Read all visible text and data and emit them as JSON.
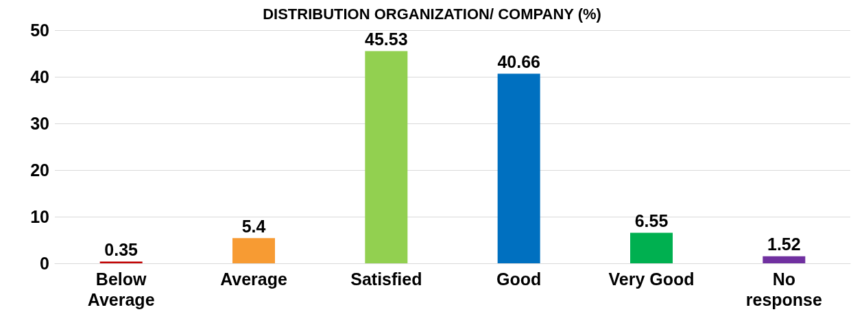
{
  "chart_data": {
    "type": "bar",
    "title": "DISTRIBUTION ORGANIZATION/ COMPANY (%)",
    "categories": [
      "Below\nAverage",
      "Average",
      "Satisfied",
      "Good",
      "Very Good",
      "No\nresponse"
    ],
    "values": [
      0.35,
      5.4,
      45.53,
      40.66,
      6.55,
      1.52
    ],
    "colors": [
      "#c00000",
      "#f79b33",
      "#92d050",
      "#0070c0",
      "#00b050",
      "#7030a0"
    ],
    "ylim": [
      0,
      50
    ],
    "yticks": [
      0,
      10,
      20,
      30,
      40,
      50
    ],
    "grid": "y",
    "data_labels": true
  }
}
